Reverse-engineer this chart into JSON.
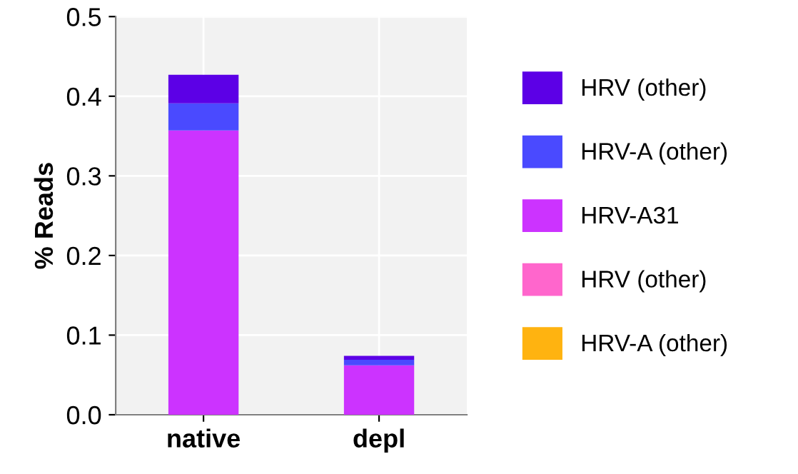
{
  "chart_data": {
    "type": "bar",
    "stacked": true,
    "ylabel": "% Reads",
    "categories": [
      "native",
      "depl"
    ],
    "series": [
      {
        "name": "HRV-A (other)",
        "color": "#ffb310",
        "values": [
          0,
          0
        ]
      },
      {
        "name": "HRV (other)",
        "color": "#ff66cc",
        "values": [
          0,
          0
        ]
      },
      {
        "name": "HRV-A31",
        "color": "#cc33ff",
        "values": [
          0.357,
          0.062
        ]
      },
      {
        "name": "HRV-A (other)",
        "color": "#4a4aff",
        "values": [
          0.034,
          0.007
        ]
      },
      {
        "name": "HRV (other)",
        "color": "#5c00e6",
        "values": [
          0.036,
          0.005
        ]
      }
    ],
    "ylim": [
      0,
      0.5
    ],
    "yticks": [
      {
        "value": 0,
        "label": "0.0"
      },
      0.1,
      0.2,
      0.3,
      0.4,
      0.5
    ],
    "grid": true,
    "legend": "right"
  }
}
